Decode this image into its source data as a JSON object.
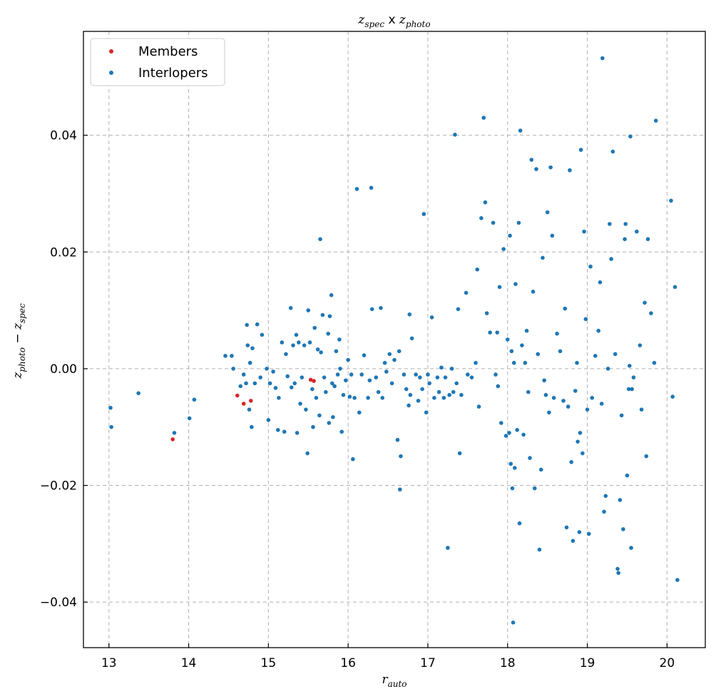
{
  "chart_data": {
    "type": "scatter",
    "title": {
      "main": "z",
      "main_sub": "spec",
      "sep": " x ",
      "second": "z",
      "second_sub": "photo"
    },
    "xlabel": {
      "main": "r",
      "sub": "auto"
    },
    "ylabel": {
      "a": "z",
      "a_sub": "photo",
      "op": " − ",
      "b": "z",
      "b_sub": "spec"
    },
    "xlim": [
      12.68,
      20.48
    ],
    "ylim": [
      -0.0478,
      0.0578
    ],
    "xticks": [
      13,
      14,
      15,
      16,
      17,
      18,
      19,
      20
    ],
    "xtick_labels": [
      "13",
      "14",
      "15",
      "16",
      "17",
      "18",
      "19",
      "20"
    ],
    "yticks": [
      -0.04,
      -0.02,
      0.0,
      0.02,
      0.04
    ],
    "ytick_labels": [
      "−0.04",
      "−0.02",
      "0.00",
      "0.02",
      "0.04"
    ],
    "grid": true,
    "legend_position": "upper-left",
    "colors": {
      "members": "#d62728",
      "interlopers": "#1f77b4"
    },
    "series": [
      {
        "name": "Members",
        "color": "#d62728",
        "points": [
          [
            13.8,
            -0.0121
          ],
          [
            14.61,
            -0.0046
          ],
          [
            14.69,
            -0.006
          ],
          [
            14.78,
            -0.0055
          ],
          [
            15.53,
            -0.0019
          ],
          [
            15.57,
            -0.0021
          ]
        ]
      },
      {
        "name": "Interlopers",
        "color": "#1f77b4",
        "points": [
          [
            13.02,
            -0.0067
          ],
          [
            13.03,
            -0.01
          ],
          [
            13.37,
            -0.0042
          ],
          [
            13.82,
            -0.011
          ],
          [
            14.01,
            -0.0085
          ],
          [
            14.07,
            -0.0053
          ],
          [
            14.46,
            0.0022
          ],
          [
            14.54,
            0.0022
          ],
          [
            14.56,
            0.0
          ],
          [
            14.65,
            -0.003
          ],
          [
            14.69,
            -0.001
          ],
          [
            14.72,
            -0.0025
          ],
          [
            14.73,
            0.0075
          ],
          [
            14.74,
            0.004
          ],
          [
            14.76,
            -0.007
          ],
          [
            14.77,
            0.001
          ],
          [
            14.79,
            -0.01
          ],
          [
            14.8,
            0.0035
          ],
          [
            14.83,
            -0.0025
          ],
          [
            14.86,
            0.0076
          ],
          [
            14.9,
            -0.0015
          ],
          [
            14.92,
            0.0058
          ],
          [
            14.98,
            0.0
          ],
          [
            15.0,
            -0.0088
          ],
          [
            15.02,
            -0.0025
          ],
          [
            15.06,
            -0.0005
          ],
          [
            15.09,
            -0.0033
          ],
          [
            15.12,
            -0.0105
          ],
          [
            15.13,
            -0.005
          ],
          [
            15.17,
            0.0045
          ],
          [
            15.2,
            -0.0108
          ],
          [
            15.22,
            0.0025
          ],
          [
            15.24,
            -0.0013
          ],
          [
            15.28,
            0.0104
          ],
          [
            15.29,
            -0.0032
          ],
          [
            15.31,
            0.004
          ],
          [
            15.33,
            -0.0025
          ],
          [
            15.35,
            0.0058
          ],
          [
            15.36,
            -0.011
          ],
          [
            15.38,
            0.0045
          ],
          [
            15.4,
            -0.006
          ],
          [
            15.42,
            -0.0015
          ],
          [
            15.45,
            0.004
          ],
          [
            15.47,
            -0.007
          ],
          [
            15.49,
            -0.0145
          ],
          [
            15.5,
            0.01
          ],
          [
            15.52,
            0.0045
          ],
          [
            15.55,
            -0.0035
          ],
          [
            15.56,
            -0.01
          ],
          [
            15.58,
            0.007
          ],
          [
            15.6,
            -0.005
          ],
          [
            15.62,
            0.0033
          ],
          [
            15.64,
            -0.008
          ],
          [
            15.65,
            0.0222
          ],
          [
            15.66,
            0.0028
          ],
          [
            15.68,
            0.0092
          ],
          [
            15.7,
            -0.0015
          ],
          [
            15.72,
            -0.004
          ],
          [
            15.75,
            0.006
          ],
          [
            15.76,
            -0.0093
          ],
          [
            15.77,
            0.009
          ],
          [
            15.79,
            0.0126
          ],
          [
            15.8,
            -0.0025
          ],
          [
            15.81,
            -0.0083
          ],
          [
            15.83,
            -0.003
          ],
          [
            15.85,
            0.003
          ],
          [
            15.87,
            -0.001
          ],
          [
            15.89,
            0.005
          ],
          [
            15.9,
            0.0
          ],
          [
            15.92,
            -0.0108
          ],
          [
            15.94,
            -0.0045
          ],
          [
            15.97,
            -0.002
          ],
          [
            16.0,
            0.0015
          ],
          [
            16.02,
            -0.0048
          ],
          [
            16.04,
            -0.001
          ],
          [
            16.06,
            -0.0155
          ],
          [
            16.08,
            -0.005
          ],
          [
            16.11,
            0.0308
          ],
          [
            16.14,
            -0.0075
          ],
          [
            16.17,
            -0.001
          ],
          [
            16.2,
            0.0023
          ],
          [
            16.25,
            -0.005
          ],
          [
            16.27,
            -0.002
          ],
          [
            16.29,
            0.031
          ],
          [
            16.3,
            0.0102
          ],
          [
            16.35,
            -0.0015
          ],
          [
            16.38,
            -0.004
          ],
          [
            16.41,
            0.0104
          ],
          [
            16.43,
            -0.005
          ],
          [
            16.46,
            0.001
          ],
          [
            16.48,
            -0.0005
          ],
          [
            16.52,
            0.0025
          ],
          [
            16.55,
            -0.0025
          ],
          [
            16.58,
            0.0015
          ],
          [
            16.62,
            -0.0122
          ],
          [
            16.64,
            0.003
          ],
          [
            16.65,
            -0.0207
          ],
          [
            16.66,
            -0.015
          ],
          [
            16.7,
            -0.001
          ],
          [
            16.73,
            -0.0035
          ],
          [
            16.76,
            -0.0063
          ],
          [
            16.77,
            0.0093
          ],
          [
            16.78,
            -0.0045
          ],
          [
            16.8,
            0.0052
          ],
          [
            16.85,
            -0.001
          ],
          [
            16.88,
            -0.0055
          ],
          [
            16.9,
            -0.0015
          ],
          [
            16.93,
            -0.0035
          ],
          [
            16.95,
            0.0265
          ],
          [
            16.98,
            -0.0075
          ],
          [
            17.0,
            -0.001
          ],
          [
            17.02,
            -0.0025
          ],
          [
            17.05,
            0.0088
          ],
          [
            17.08,
            -0.005
          ],
          [
            17.12,
            -0.0015
          ],
          [
            17.14,
            -0.004
          ],
          [
            17.17,
            0.0002
          ],
          [
            17.2,
            -0.005
          ],
          [
            17.22,
            -0.0015
          ],
          [
            17.25,
            -0.0307
          ],
          [
            17.27,
            -0.0045
          ],
          [
            17.3,
            0.0
          ],
          [
            17.32,
            -0.004
          ],
          [
            17.34,
            0.0401
          ],
          [
            17.36,
            -0.0025
          ],
          [
            17.38,
            0.0102
          ],
          [
            17.4,
            -0.0145
          ],
          [
            17.42,
            -0.0045
          ],
          [
            17.48,
            0.013
          ],
          [
            17.5,
            -0.001
          ],
          [
            17.55,
            -0.0015
          ],
          [
            17.6,
            0.001
          ],
          [
            17.62,
            0.017
          ],
          [
            17.64,
            -0.0065
          ],
          [
            17.67,
            0.0258
          ],
          [
            17.7,
            0.043
          ],
          [
            17.72,
            0.0285
          ],
          [
            17.74,
            0.0095
          ],
          [
            17.78,
            0.0062
          ],
          [
            17.82,
            0.025
          ],
          [
            17.85,
            -0.001
          ],
          [
            17.87,
            0.0062
          ],
          [
            17.88,
            -0.003
          ],
          [
            17.9,
            0.014
          ],
          [
            17.92,
            -0.0093
          ],
          [
            17.95,
            0.0205
          ],
          [
            17.98,
            -0.0115
          ],
          [
            18.0,
            0.005
          ],
          [
            18.02,
            -0.011
          ],
          [
            18.03,
            0.0228
          ],
          [
            18.04,
            -0.0163
          ],
          [
            18.05,
            0.003
          ],
          [
            18.06,
            -0.0205
          ],
          [
            18.07,
            -0.0435
          ],
          [
            18.08,
            0.001
          ],
          [
            18.09,
            -0.017
          ],
          [
            18.1,
            0.0145
          ],
          [
            18.12,
            -0.0105
          ],
          [
            18.14,
            0.025
          ],
          [
            18.15,
            -0.0265
          ],
          [
            18.16,
            0.0408
          ],
          [
            18.18,
            0.004
          ],
          [
            18.2,
            -0.0113
          ],
          [
            18.22,
            0.001
          ],
          [
            18.24,
            0.0065
          ],
          [
            18.26,
            -0.004
          ],
          [
            18.28,
            -0.0153
          ],
          [
            18.3,
            0.0358
          ],
          [
            18.32,
            0.0132
          ],
          [
            18.34,
            -0.0205
          ],
          [
            18.36,
            0.0342
          ],
          [
            18.38,
            0.0025
          ],
          [
            18.4,
            -0.031
          ],
          [
            18.42,
            -0.0173
          ],
          [
            18.44,
            0.019
          ],
          [
            18.46,
            -0.002
          ],
          [
            18.48,
            -0.0045
          ],
          [
            18.5,
            0.0268
          ],
          [
            18.52,
            -0.0075
          ],
          [
            18.54,
            0.0345
          ],
          [
            18.56,
            0.0228
          ],
          [
            18.58,
            -0.005
          ],
          [
            18.62,
            0.006
          ],
          [
            18.66,
            0.003
          ],
          [
            18.7,
            -0.0055
          ],
          [
            18.72,
            0.0103
          ],
          [
            18.74,
            -0.0272
          ],
          [
            18.76,
            -0.0065
          ],
          [
            18.78,
            0.034
          ],
          [
            18.8,
            -0.016
          ],
          [
            18.82,
            -0.0295
          ],
          [
            18.85,
            -0.0038
          ],
          [
            18.87,
            0.001
          ],
          [
            18.88,
            -0.0125
          ],
          [
            18.9,
            -0.028
          ],
          [
            18.91,
            -0.011
          ],
          [
            18.92,
            0.0375
          ],
          [
            18.94,
            -0.0145
          ],
          [
            18.96,
            0.0235
          ],
          [
            18.98,
            0.0085
          ],
          [
            19.0,
            -0.007
          ],
          [
            19.02,
            -0.0283
          ],
          [
            19.04,
            0.0175
          ],
          [
            19.06,
            -0.005
          ],
          [
            19.1,
            0.0022
          ],
          [
            19.14,
            0.0065
          ],
          [
            19.16,
            0.0148
          ],
          [
            19.18,
            -0.006
          ],
          [
            19.19,
            0.0532
          ],
          [
            19.21,
            -0.0245
          ],
          [
            19.23,
            -0.0218
          ],
          [
            19.26,
            0.0
          ],
          [
            19.28,
            0.0248
          ],
          [
            19.3,
            0.0188
          ],
          [
            19.32,
            0.0372
          ],
          [
            19.35,
            0.0025
          ],
          [
            19.38,
            -0.0343
          ],
          [
            19.39,
            -0.035
          ],
          [
            19.41,
            -0.0225
          ],
          [
            19.43,
            -0.008
          ],
          [
            19.45,
            -0.0275
          ],
          [
            19.47,
            0.0222
          ],
          [
            19.48,
            0.0248
          ],
          [
            19.5,
            -0.0183
          ],
          [
            19.52,
            -0.0035
          ],
          [
            19.53,
            0.0005
          ],
          [
            19.54,
            0.0398
          ],
          [
            19.55,
            -0.0307
          ],
          [
            19.56,
            -0.0035
          ],
          [
            19.58,
            -0.0015
          ],
          [
            19.62,
            0.0235
          ],
          [
            19.66,
            0.004
          ],
          [
            19.68,
            -0.007
          ],
          [
            19.72,
            0.0113
          ],
          [
            19.74,
            -0.015
          ],
          [
            19.76,
            0.0222
          ],
          [
            19.8,
            0.0095
          ],
          [
            19.84,
            0.001
          ],
          [
            19.86,
            0.0425
          ],
          [
            20.05,
            0.0288
          ],
          [
            20.07,
            -0.0048
          ],
          [
            20.1,
            0.014
          ],
          [
            20.13,
            -0.0362
          ]
        ]
      }
    ]
  }
}
